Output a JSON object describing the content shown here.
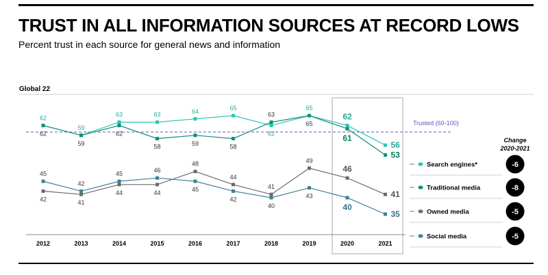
{
  "title": "TRUST IN ALL INFORMATION SOURCES AT RECORD LOWS",
  "subtitle": "Percent trust in each source for general news and information",
  "region_label": "Global 22",
  "trusted_label": "Trusted (60-100)",
  "change_header": [
    "Change",
    "2020-2021"
  ],
  "chart_data": {
    "type": "line",
    "x": [
      "2012",
      "2013",
      "2014",
      "2015",
      "2016",
      "2017",
      "2018",
      "2019",
      "2020",
      "2021"
    ],
    "trusted_threshold": 60,
    "highlight_years": [
      "2020",
      "2021"
    ],
    "series": [
      {
        "name": "Search engines*",
        "color": "#2ec4b6",
        "values": [
          62,
          59,
          63,
          63,
          64,
          65,
          62,
          65,
          62,
          56
        ],
        "change": "-6"
      },
      {
        "name": "Traditional media",
        "color": "#0e8f74",
        "values": [
          62,
          59,
          62,
          58,
          59,
          58,
          63,
          65,
          61,
          53
        ],
        "change": "-8"
      },
      {
        "name": "Owned media",
        "color": "#6b6b6b",
        "values": [
          42,
          41,
          44,
          44,
          48,
          44,
          41,
          49,
          46,
          41
        ],
        "change": "-5"
      },
      {
        "name": "Social media",
        "color": "#3e7f96",
        "values": [
          45,
          42,
          45,
          46,
          45,
          42,
          40,
          43,
          40,
          35
        ],
        "change": "-5"
      }
    ]
  },
  "colors": {
    "trusted_line": "#5a55c9",
    "axis": "#888888",
    "highlight_box": "#aaaaaa",
    "badge": "#000000"
  }
}
